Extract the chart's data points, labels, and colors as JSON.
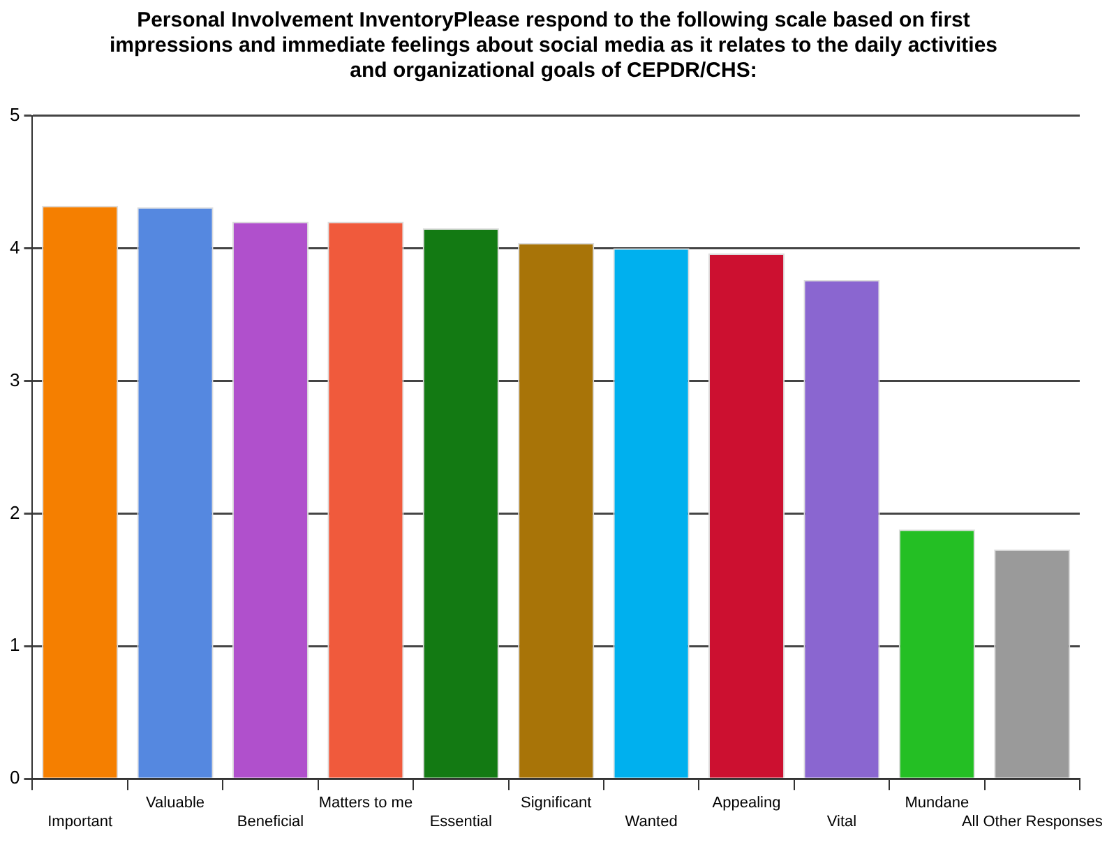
{
  "chart_data": {
    "type": "bar",
    "title": "Personal Involvement InventoryPlease respond to the following scale based on first impressions and immediate feelings about social media as it relates to the daily activities and organizational goals of CEPDR/CHS:",
    "categories": [
      "Important",
      "Valuable",
      "Beneficial",
      "Matters to me",
      "Essential",
      "Significant",
      "Wanted",
      "Appealing",
      "Vital",
      "Mundane",
      "All Other Responses"
    ],
    "values": [
      4.32,
      4.31,
      4.2,
      4.2,
      4.15,
      4.04,
      4.0,
      3.96,
      3.76,
      1.88,
      1.73
    ],
    "colors": [
      "#f57f00",
      "#5588e0",
      "#b050cc",
      "#f05a3c",
      "#137a13",
      "#a87408",
      "#00b0ee",
      "#cc1030",
      "#8a66d0",
      "#24bf24",
      "#9a9a9a"
    ],
    "ylim": [
      0,
      5
    ],
    "yticks": [
      0,
      1,
      2,
      3,
      4,
      5
    ],
    "grid": "y"
  }
}
